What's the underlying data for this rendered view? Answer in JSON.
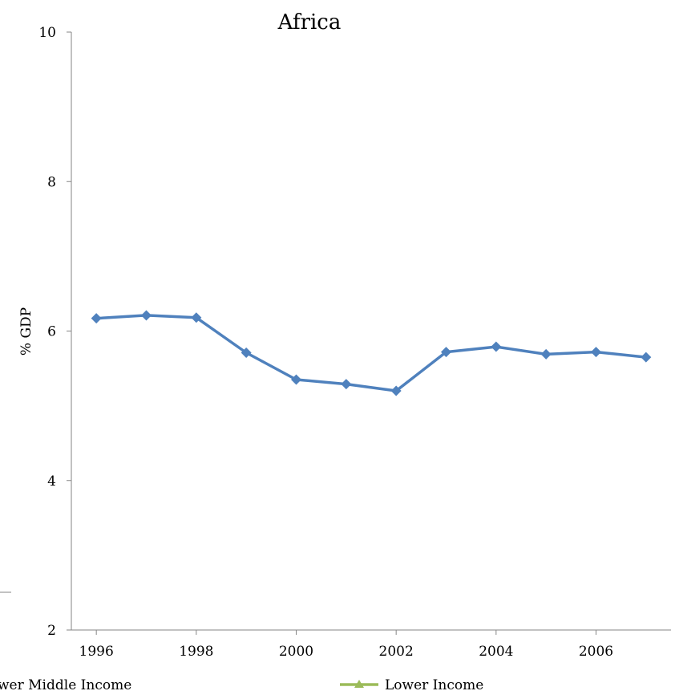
{
  "chart_data": {
    "type": "line",
    "title": "Africa",
    "xlabel": "",
    "ylabel": "% GDP",
    "ylim": [
      2,
      10
    ],
    "yticks": [
      2,
      4,
      6,
      8,
      10
    ],
    "xlim": [
      1995.5,
      2007.5
    ],
    "xticks": [
      1996,
      1998,
      2000,
      2002,
      2004,
      2006
    ],
    "x": [
      1996,
      1997,
      1998,
      1999,
      2000,
      2001,
      2002,
      2003,
      2004,
      2005,
      2006,
      2007
    ],
    "series": [
      {
        "name": "",
        "color": "#4F81BD",
        "marker": "diamond",
        "values": [
          6.17,
          6.21,
          6.18,
          5.71,
          5.35,
          5.29,
          5.2,
          5.72,
          5.79,
          5.69,
          5.72,
          5.65
        ]
      }
    ],
    "legend": {
      "placement": "bottom",
      "entries": [
        {
          "label": "wer Middle Income",
          "color": "#4F81BD",
          "marker": "none"
        },
        {
          "label": "Lower Income",
          "color": "#9BBB59",
          "marker": "triangle"
        }
      ]
    },
    "grid": false
  }
}
